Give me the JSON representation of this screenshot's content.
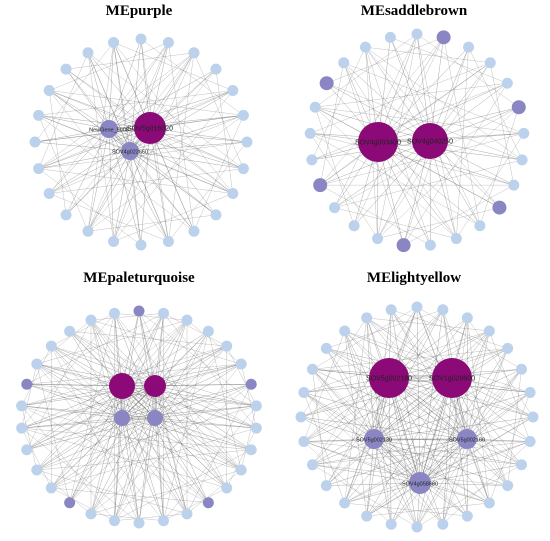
{
  "colors": {
    "hub": "#8b0a77",
    "secondary": "#8a86c4",
    "peripheral": "#bcd2ec",
    "edge": "#555555",
    "label": "#222222"
  },
  "panels": [
    {
      "title": "MEpurple",
      "hubs": [
        {
          "label": "SOV5g016020",
          "size": "large"
        },
        {
          "label": "NewGene_5008",
          "size": "medium"
        },
        {
          "label": "SOV4g022650",
          "size": "medium"
        }
      ],
      "peripheral_labels": [
        "",
        "",
        "",
        "",
        "",
        "",
        "",
        "",
        "",
        "",
        "",
        "",
        "",
        "",
        "",
        "",
        "",
        "",
        "",
        "",
        "",
        "",
        "",
        ""
      ]
    },
    {
      "title": "MEsaddlebrown",
      "hubs": [
        {
          "label": "SOV4g003400",
          "size": "large"
        },
        {
          "label": "SOV4g040250",
          "size": "large"
        }
      ],
      "peripheral_labels": [
        "",
        "",
        "",
        "",
        "",
        "",
        "",
        "",
        "",
        "",
        "",
        "",
        "",
        "",
        "",
        "",
        "",
        "",
        "",
        "",
        "",
        "",
        "",
        "",
        ""
      ]
    },
    {
      "title": "MEpaleturquoise",
      "hubs": [
        {
          "label": "",
          "size": "large"
        },
        {
          "label": "",
          "size": "large"
        },
        {
          "label": "",
          "size": "medium"
        },
        {
          "label": "",
          "size": "medium"
        }
      ],
      "peripheral_labels": [
        "",
        "",
        "",
        "",
        "",
        "",
        "",
        "",
        "",
        "",
        "",
        "",
        "",
        "",
        "",
        "",
        "",
        "",
        "",
        "",
        "",
        "",
        "",
        "",
        "",
        "",
        "",
        "",
        "",
        ""
      ]
    },
    {
      "title": "MElightyellow",
      "hubs": [
        {
          "label": "SOV5g002180",
          "size": "large"
        },
        {
          "label": "SOV1g028600",
          "size": "large"
        },
        {
          "label": "SOV5g002130",
          "size": "medium"
        },
        {
          "label": "SOV5g002160",
          "size": "medium"
        },
        {
          "label": "SOV4g058680",
          "size": "medium"
        }
      ],
      "peripheral_labels": [
        "",
        "",
        "",
        "",
        "",
        "",
        "",
        "",
        "",
        "",
        "",
        "",
        "",
        "",
        "",
        "",
        "",
        "",
        "",
        "",
        "",
        "",
        "",
        "",
        "",
        "",
        "",
        ""
      ]
    }
  ]
}
